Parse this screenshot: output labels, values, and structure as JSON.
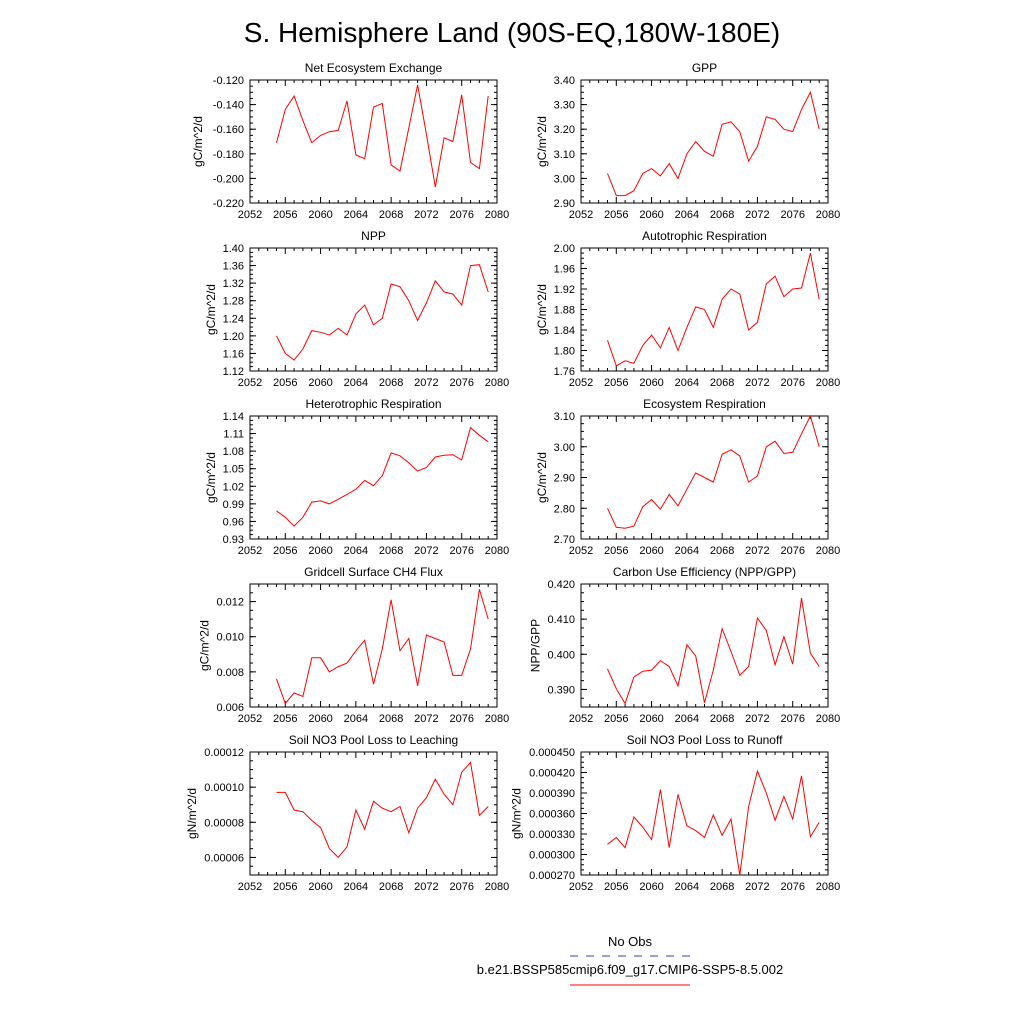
{
  "figure": {
    "title": "S. Hemisphere Land (90S-EQ,180W-180E)",
    "legend": [
      {
        "label": "No Obs",
        "color": "#3344cc",
        "dashed": true
      },
      {
        "label": "b.e21.BSSP585cmip6.f09_g17.CMIP6-SSP5-8.5.002",
        "color": "#ff0000",
        "dashed": false
      }
    ]
  },
  "chart_data": [
    {
      "type": "line",
      "title": "Net Ecosystem Exchange",
      "ylabel": "gC/m^2/d",
      "xlim": [
        2052,
        2080
      ],
      "ylim": [
        -0.22,
        -0.12
      ],
      "xticks": [
        "2052",
        "2056",
        "2060",
        "2064",
        "2068",
        "2072",
        "2076",
        "2080"
      ],
      "yticks": [
        "-0.220",
        "-0.200",
        "-0.180",
        "-0.160",
        "-0.140",
        "-0.120"
      ],
      "x": [
        2055,
        2056,
        2057,
        2058,
        2059,
        2060,
        2061,
        2062,
        2063,
        2064,
        2065,
        2066,
        2067,
        2068,
        2069,
        2070,
        2071,
        2072,
        2073,
        2074,
        2075,
        2076,
        2077,
        2078,
        2079
      ],
      "series": [
        {
          "color": "#ff0000",
          "values": [
            -0.171,
            -0.144,
            -0.133,
            -0.153,
            -0.171,
            -0.165,
            -0.162,
            -0.161,
            -0.137,
            -0.181,
            -0.184,
            -0.142,
            -0.139,
            -0.189,
            -0.194,
            -0.159,
            -0.124,
            -0.164,
            -0.207,
            -0.167,
            -0.17,
            -0.132,
            -0.187,
            -0.192,
            -0.133
          ]
        }
      ]
    },
    {
      "type": "line",
      "title": "GPP",
      "ylabel": "gC/m^2/d",
      "xlim": [
        2052,
        2080
      ],
      "ylim": [
        2.9,
        3.4
      ],
      "xticks": [
        "2052",
        "2056",
        "2060",
        "2064",
        "2068",
        "2072",
        "2076",
        "2080"
      ],
      "yticks": [
        "2.90",
        "3.00",
        "3.10",
        "3.20",
        "3.30",
        "3.40"
      ],
      "x": [
        2055,
        2056,
        2057,
        2058,
        2059,
        2060,
        2061,
        2062,
        2063,
        2064,
        2065,
        2066,
        2067,
        2068,
        2069,
        2070,
        2071,
        2072,
        2073,
        2074,
        2075,
        2076,
        2077,
        2078,
        2079
      ],
      "series": [
        {
          "color": "#ff0000",
          "values": [
            3.02,
            2.93,
            2.93,
            2.95,
            3.02,
            3.04,
            3.01,
            3.06,
            3.0,
            3.1,
            3.15,
            3.11,
            3.09,
            3.22,
            3.23,
            3.19,
            3.07,
            3.13,
            3.25,
            3.24,
            3.2,
            3.19,
            3.28,
            3.35,
            3.2
          ]
        }
      ]
    },
    {
      "type": "line",
      "title": "NPP",
      "ylabel": "gC/m^2/d",
      "xlim": [
        2052,
        2080
      ],
      "ylim": [
        1.12,
        1.4
      ],
      "xticks": [
        "2052",
        "2056",
        "2060",
        "2064",
        "2068",
        "2072",
        "2076",
        "2080"
      ],
      "yticks": [
        "1.12",
        "1.16",
        "1.20",
        "1.24",
        "1.28",
        "1.32",
        "1.36",
        "1.40"
      ],
      "x": [
        2055,
        2056,
        2057,
        2058,
        2059,
        2060,
        2061,
        2062,
        2063,
        2064,
        2065,
        2066,
        2067,
        2068,
        2069,
        2070,
        2071,
        2072,
        2073,
        2074,
        2075,
        2076,
        2077,
        2078,
        2079
      ],
      "series": [
        {
          "color": "#ff0000",
          "values": [
            1.2,
            1.16,
            1.145,
            1.17,
            1.212,
            1.208,
            1.202,
            1.217,
            1.202,
            1.25,
            1.27,
            1.225,
            1.24,
            1.318,
            1.312,
            1.28,
            1.235,
            1.275,
            1.325,
            1.3,
            1.295,
            1.27,
            1.36,
            1.362,
            1.3
          ]
        }
      ]
    },
    {
      "type": "line",
      "title": "Autotrophic Respiration",
      "ylabel": "gC/m^2/d",
      "xlim": [
        2052,
        2080
      ],
      "ylim": [
        1.76,
        2.0
      ],
      "xticks": [
        "2052",
        "2056",
        "2060",
        "2064",
        "2068",
        "2072",
        "2076",
        "2080"
      ],
      "yticks": [
        "1.76",
        "1.80",
        "1.84",
        "1.88",
        "1.92",
        "1.96",
        "2.00"
      ],
      "x": [
        2055,
        2056,
        2057,
        2058,
        2059,
        2060,
        2061,
        2062,
        2063,
        2064,
        2065,
        2066,
        2067,
        2068,
        2069,
        2070,
        2071,
        2072,
        2073,
        2074,
        2075,
        2076,
        2077,
        2078,
        2079
      ],
      "series": [
        {
          "color": "#ff0000",
          "values": [
            1.82,
            1.77,
            1.78,
            1.775,
            1.81,
            1.83,
            1.805,
            1.845,
            1.8,
            1.845,
            1.885,
            1.88,
            1.845,
            1.9,
            1.92,
            1.91,
            1.84,
            1.855,
            1.93,
            1.945,
            1.905,
            1.92,
            1.922,
            1.99,
            1.9
          ]
        }
      ]
    },
    {
      "type": "line",
      "title": "Heterotrophic Respiration",
      "ylabel": "gC/m^2/d",
      "xlim": [
        2052,
        2080
      ],
      "ylim": [
        0.93,
        1.14
      ],
      "xticks": [
        "2052",
        "2056",
        "2060",
        "2064",
        "2068",
        "2072",
        "2076",
        "2080"
      ],
      "yticks": [
        "0.93",
        "0.96",
        "0.99",
        "1.02",
        "1.05",
        "1.08",
        "1.11",
        "1.14"
      ],
      "x": [
        2055,
        2056,
        2057,
        2058,
        2059,
        2060,
        2061,
        2062,
        2063,
        2064,
        2065,
        2066,
        2067,
        2068,
        2069,
        2070,
        2071,
        2072,
        2073,
        2074,
        2075,
        2076,
        2077,
        2078,
        2079
      ],
      "series": [
        {
          "color": "#ff0000",
          "values": [
            0.978,
            0.967,
            0.952,
            0.967,
            0.993,
            0.995,
            0.99,
            0.998,
            1.006,
            1.015,
            1.03,
            1.021,
            1.038,
            1.077,
            1.072,
            1.06,
            1.046,
            1.052,
            1.07,
            1.073,
            1.074,
            1.065,
            1.12,
            1.107,
            1.096
          ]
        }
      ]
    },
    {
      "type": "line",
      "title": "Ecosystem Respiration",
      "ylabel": "gC/m^2/d",
      "xlim": [
        2052,
        2080
      ],
      "ylim": [
        2.7,
        3.1
      ],
      "xticks": [
        "2052",
        "2056",
        "2060",
        "2064",
        "2068",
        "2072",
        "2076",
        "2080"
      ],
      "yticks": [
        "2.70",
        "2.80",
        "2.90",
        "3.00",
        "3.10"
      ],
      "x": [
        2055,
        2056,
        2057,
        2058,
        2059,
        2060,
        2061,
        2062,
        2063,
        2064,
        2065,
        2066,
        2067,
        2068,
        2069,
        2070,
        2071,
        2072,
        2073,
        2074,
        2075,
        2076,
        2077,
        2078,
        2079
      ],
      "series": [
        {
          "color": "#ff0000",
          "values": [
            2.8,
            2.738,
            2.735,
            2.742,
            2.805,
            2.828,
            2.797,
            2.845,
            2.808,
            2.862,
            2.915,
            2.9,
            2.885,
            2.975,
            2.99,
            2.97,
            2.885,
            2.905,
            3.0,
            3.018,
            2.978,
            2.982,
            3.042,
            3.1,
            3.0
          ]
        }
      ]
    },
    {
      "type": "line",
      "title": "Gridcell Surface CH4 Flux",
      "ylabel": "gC/m^2/d",
      "xlim": [
        2052,
        2080
      ],
      "ylim": [
        0.006,
        0.013
      ],
      "xticks": [
        "2052",
        "2056",
        "2060",
        "2064",
        "2068",
        "2072",
        "2076",
        "2080"
      ],
      "yticks": [
        "0.006",
        "0.008",
        "0.010",
        "0.012"
      ],
      "x": [
        2055,
        2056,
        2057,
        2058,
        2059,
        2060,
        2061,
        2062,
        2063,
        2064,
        2065,
        2066,
        2067,
        2068,
        2069,
        2070,
        2071,
        2072,
        2073,
        2074,
        2075,
        2076,
        2077,
        2078,
        2079
      ],
      "series": [
        {
          "color": "#ff0000",
          "values": [
            0.0076,
            0.0062,
            0.0068,
            0.0066,
            0.0088,
            0.0088,
            0.008,
            0.0083,
            0.0085,
            0.0092,
            0.0098,
            0.0073,
            0.0093,
            0.0121,
            0.0092,
            0.0099,
            0.0072,
            0.0101,
            0.0099,
            0.0097,
            0.0078,
            0.0078,
            0.0093,
            0.0127,
            0.011
          ]
        }
      ]
    },
    {
      "type": "line",
      "title": "Carbon Use Efficiency (NPP/GPP)",
      "ylabel": "NPP/GPP",
      "xlim": [
        2052,
        2080
      ],
      "ylim": [
        0.385,
        0.42
      ],
      "xticks": [
        "2052",
        "2056",
        "2060",
        "2064",
        "2068",
        "2072",
        "2076",
        "2080"
      ],
      "yticks": [
        "0.390",
        "0.400",
        "0.410",
        "0.420"
      ],
      "x": [
        2055,
        2056,
        2057,
        2058,
        2059,
        2060,
        2061,
        2062,
        2063,
        2064,
        2065,
        2066,
        2067,
        2068,
        2069,
        2070,
        2071,
        2072,
        2073,
        2074,
        2075,
        2076,
        2077,
        2078,
        2079
      ],
      "series": [
        {
          "color": "#ff0000",
          "values": [
            0.3958,
            0.3902,
            0.386,
            0.3935,
            0.3952,
            0.3955,
            0.3982,
            0.3965,
            0.391,
            0.4027,
            0.3995,
            0.3862,
            0.3955,
            0.4073,
            0.4008,
            0.394,
            0.3965,
            0.4103,
            0.4068,
            0.397,
            0.405,
            0.3972,
            0.416,
            0.4003,
            0.3965
          ]
        }
      ]
    },
    {
      "type": "line",
      "title": "Soil NO3 Pool Loss to Leaching",
      "ylabel": "gN/m^2/d",
      "xlim": [
        2052,
        2080
      ],
      "ylim": [
        5e-05,
        0.00012
      ],
      "xticks": [
        "2052",
        "2056",
        "2060",
        "2064",
        "2068",
        "2072",
        "2076",
        "2080"
      ],
      "yticks": [
        "0.00006",
        "0.00008",
        "0.00010",
        "0.00012"
      ],
      "x": [
        2055,
        2056,
        2057,
        2058,
        2059,
        2060,
        2061,
        2062,
        2063,
        2064,
        2065,
        2066,
        2067,
        2068,
        2069,
        2070,
        2071,
        2072,
        2073,
        2074,
        2075,
        2076,
        2077,
        2078,
        2079
      ],
      "series": [
        {
          "color": "#ff0000",
          "values": [
            9.7e-05,
            9.7e-05,
            8.7e-05,
            8.6e-05,
            8.1e-05,
            7.7e-05,
            6.5e-05,
            6e-05,
            6.6e-05,
            8.7e-05,
            7.6e-05,
            9.2e-05,
            8.8e-05,
            8.6e-05,
            8.9e-05,
            7.4e-05,
            8.8e-05,
            9.4e-05,
            0.0001045,
            9.6e-05,
            9e-05,
            0.0001085,
            0.000114,
            8.4e-05,
            8.9e-05
          ]
        }
      ]
    },
    {
      "type": "line",
      "title": "Soil NO3 Pool Loss to Runoff",
      "ylabel": "gN/m^2/d",
      "xlim": [
        2052,
        2080
      ],
      "ylim": [
        0.00027,
        0.00045
      ],
      "xticks": [
        "2052",
        "2056",
        "2060",
        "2064",
        "2068",
        "2072",
        "2076",
        "2080"
      ],
      "yticks": [
        "0.000270",
        "0.000300",
        "0.000330",
        "0.000360",
        "0.000390",
        "0.000420",
        "0.000450"
      ],
      "x": [
        2055,
        2056,
        2057,
        2058,
        2059,
        2060,
        2061,
        2062,
        2063,
        2064,
        2065,
        2066,
        2067,
        2068,
        2069,
        2070,
        2071,
        2072,
        2073,
        2074,
        2075,
        2076,
        2077,
        2078,
        2079
      ],
      "series": [
        {
          "color": "#ff0000",
          "values": [
            0.000315,
            0.000325,
            0.00031,
            0.000355,
            0.00034,
            0.000322,
            0.000395,
            0.00031,
            0.000388,
            0.000342,
            0.000335,
            0.000325,
            0.000358,
            0.000328,
            0.000352,
            0.00027,
            0.00037,
            0.000422,
            0.00039,
            0.00035,
            0.000385,
            0.000352,
            0.000415,
            0.000326,
            0.000347
          ]
        }
      ]
    }
  ]
}
